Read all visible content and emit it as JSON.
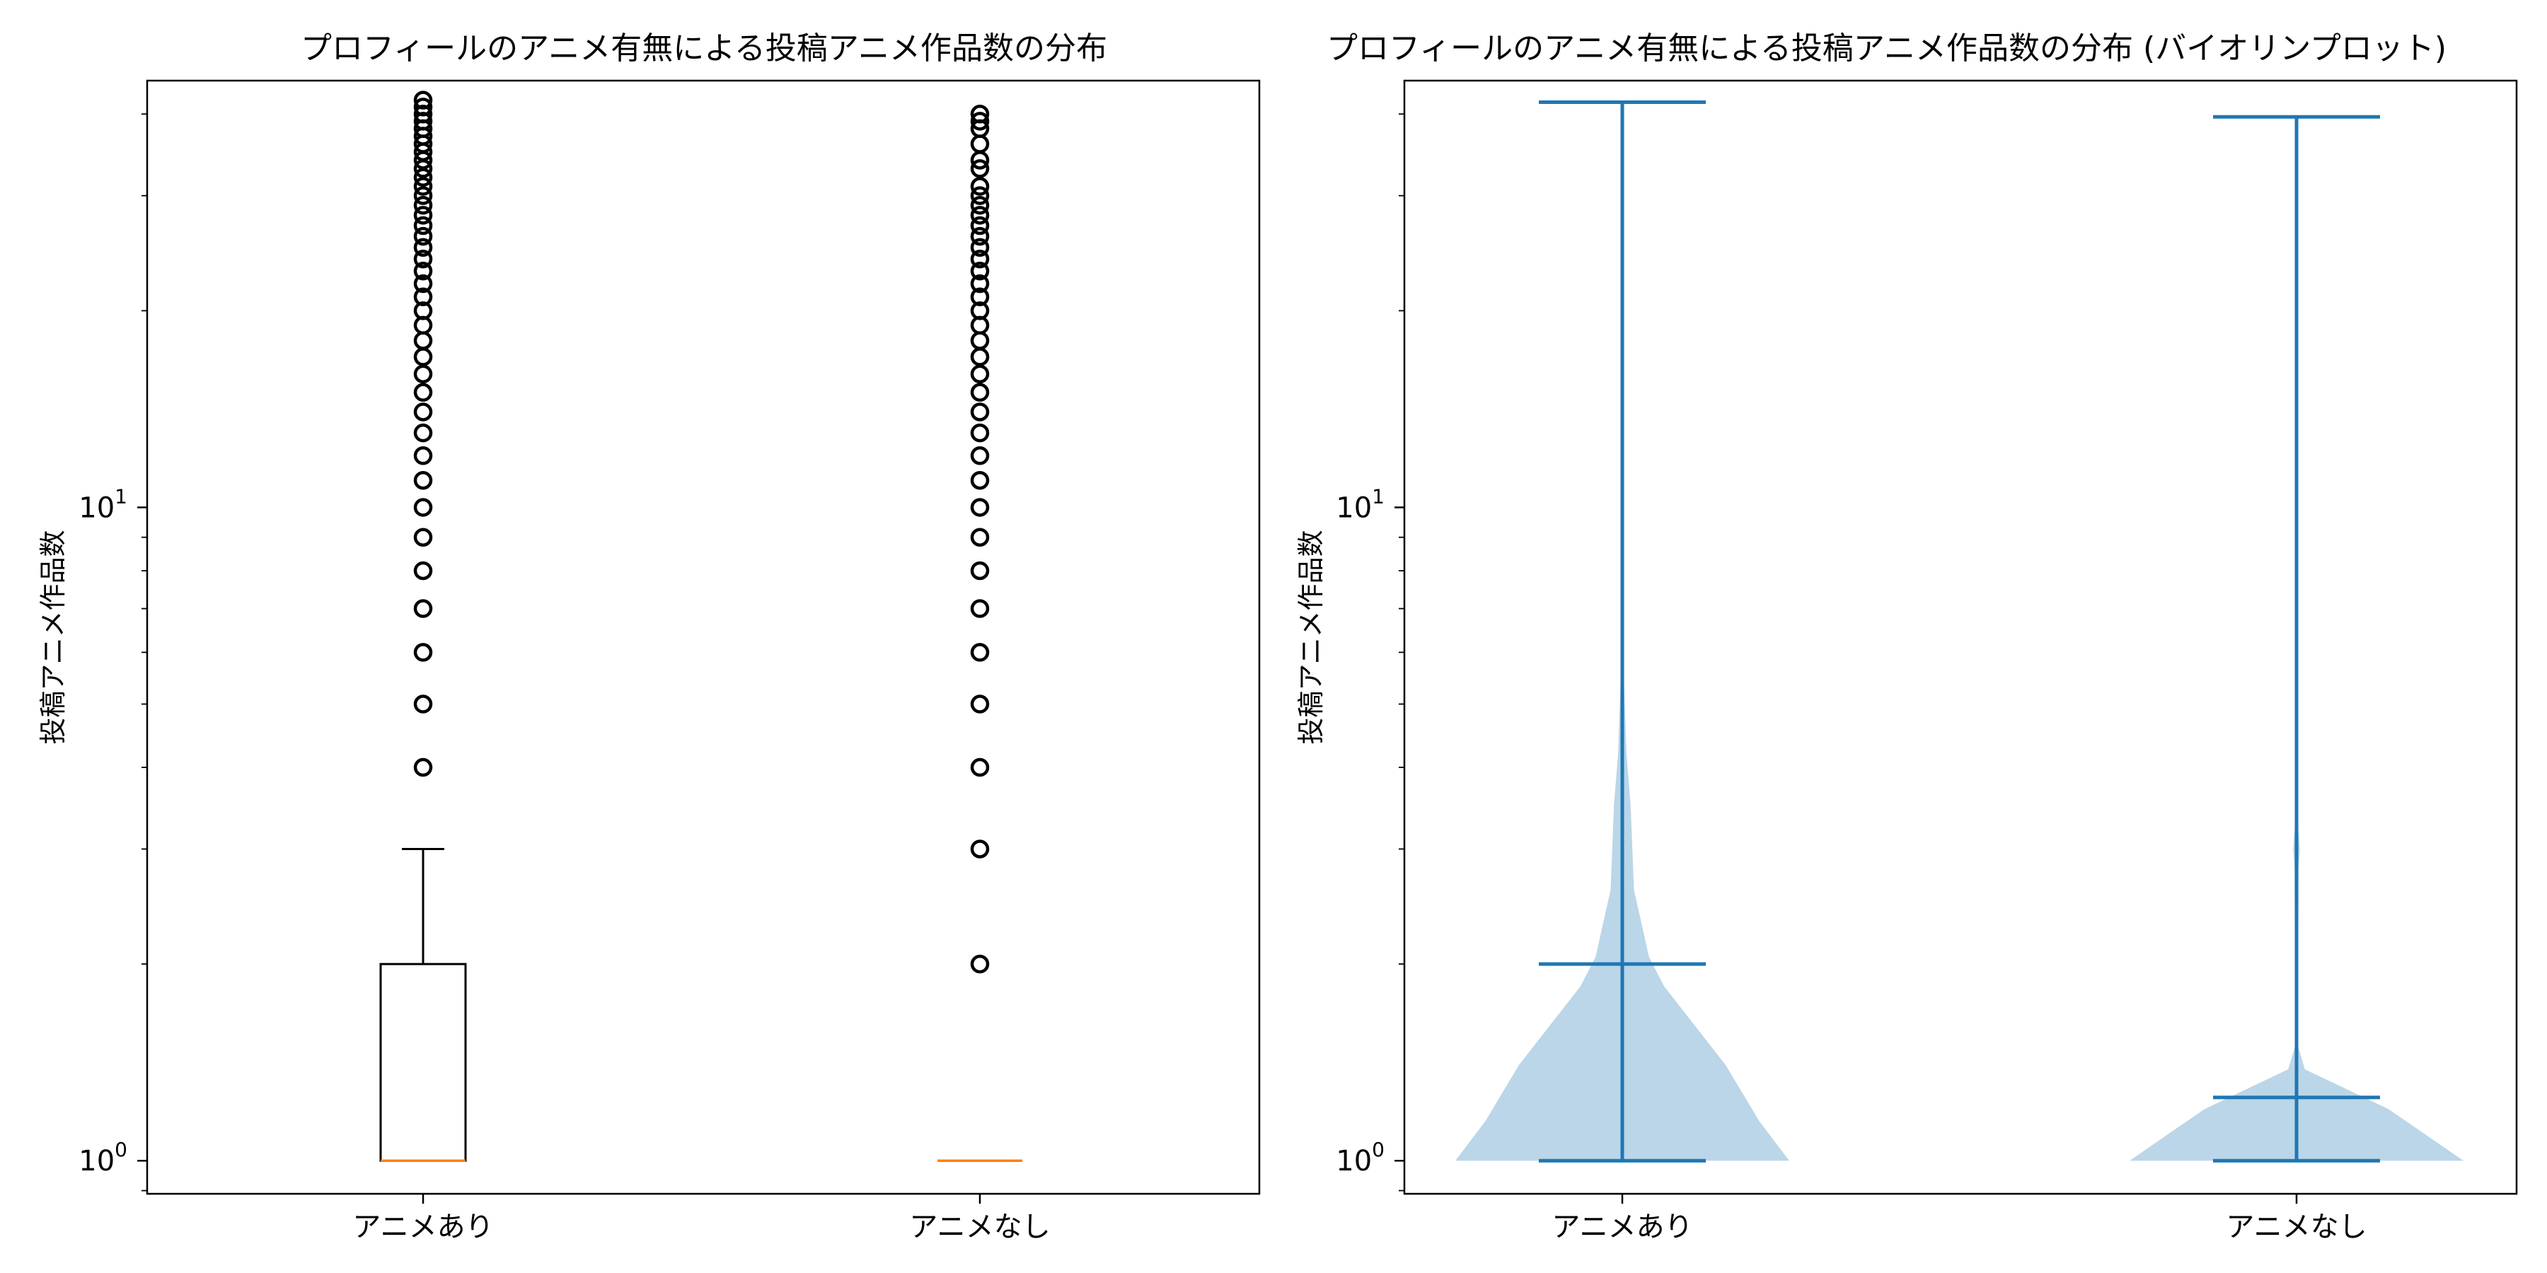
{
  "chart_data": [
    {
      "type": "box",
      "title": "プロフィールのアニメ有無による投稿アニメ作品数の分布",
      "ylabel": "投稿アニメ作品数",
      "yscale": "log",
      "ylim": [
        0.89,
        45.0
      ],
      "yticks": [
        {
          "base": "10",
          "exp": "0",
          "value": 1
        },
        {
          "base": "10",
          "exp": "1",
          "value": 10
        }
      ],
      "categories": [
        "アニメあり",
        "アニメなし"
      ],
      "series": [
        {
          "category": "アニメあり",
          "median": 1,
          "q1": 1,
          "q3": 2,
          "whisker_low": 1,
          "whisker_high": 3,
          "outliers": [
            4,
            5,
            6,
            7,
            8,
            9,
            10,
            11,
            12,
            13,
            14,
            15,
            16,
            17,
            18,
            19,
            20,
            21,
            22,
            23,
            24,
            25,
            26,
            27,
            28,
            29,
            30,
            31,
            32,
            33,
            34,
            35,
            36,
            37,
            38,
            39,
            40,
            41,
            42
          ]
        },
        {
          "category": "アニメなし",
          "median": 1,
          "q1": 1,
          "q3": 1,
          "whisker_low": 1,
          "whisker_high": 1,
          "outliers": [
            2,
            3,
            4,
            5,
            6,
            7,
            8,
            9,
            10,
            11,
            12,
            13,
            14,
            15,
            16,
            17,
            18,
            19,
            20,
            21,
            22,
            23,
            24,
            25,
            26,
            27,
            28,
            29,
            30,
            31,
            33,
            34,
            36,
            38,
            39,
            40
          ]
        }
      ],
      "colors": {
        "box": "#000000",
        "median": "#ff7f0e",
        "outlier": "#000000"
      }
    },
    {
      "type": "violin",
      "title": "プロフィールのアニメ有無による投稿アニメ作品数の分布 (バイオリンプロット)",
      "ylabel": "投稿アニメ作品数",
      "yscale": "log",
      "ylim": [
        0.89,
        45.0
      ],
      "yticks": [
        {
          "base": "10",
          "exp": "0",
          "value": 1
        },
        {
          "base": "10",
          "exp": "1",
          "value": 10
        }
      ],
      "categories": [
        "アニメあり",
        "アニメなし"
      ],
      "series": [
        {
          "category": "アニメあり",
          "min": 1,
          "max": 41.7,
          "mean": 2,
          "median": 1,
          "profile": [
            [
              1,
              1.0
            ],
            [
              1.15,
              0.82
            ],
            [
              1.4,
              0.62
            ],
            [
              1.85,
              0.25
            ],
            [
              2.05,
              0.16
            ],
            [
              2.6,
              0.07
            ],
            [
              3.0,
              0.06
            ],
            [
              3.5,
              0.05
            ],
            [
              4.2,
              0.025
            ],
            [
              5.0,
              0.015
            ],
            [
              6.0,
              0.005
            ]
          ]
        },
        {
          "category": "アニメなし",
          "min": 1,
          "max": 39.6,
          "mean": 1.25,
          "median": 1,
          "profile": [
            [
              1,
              1.0
            ],
            [
              1.2,
              0.55
            ],
            [
              1.38,
              0.05
            ],
            [
              1.5,
              0.008
            ],
            [
              2.8,
              0.012
            ],
            [
              3.0,
              0.02
            ],
            [
              3.2,
              0.012
            ]
          ]
        }
      ],
      "colors": {
        "fill": "#1f77b4",
        "fill_opacity": 0.3,
        "line": "#1f77b4"
      }
    }
  ]
}
